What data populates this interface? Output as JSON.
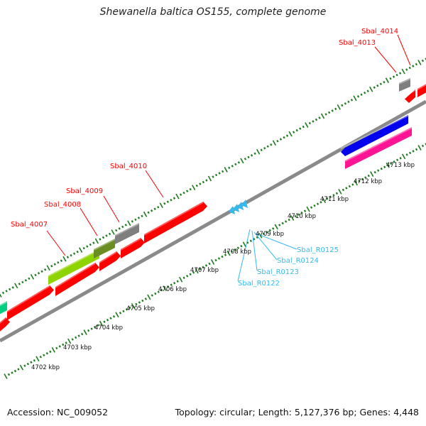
{
  "title": "Shewanella baltica OS155, complete genome",
  "footer": {
    "accession": "Accession: NC_009052",
    "summary": "Topology: circular; Length: 5,127,376 bp; Genes: 4,448"
  },
  "colors": {
    "red": "#ff0000",
    "gray": "#7f7f7f",
    "light_green": "#8fd400",
    "olive": "#6b8e23",
    "blue": "#0000ee",
    "pink": "#ff1493",
    "teal": "#00d080",
    "cyan": "#33bbee",
    "tick_green": "#1e7a1e",
    "backbone": "#999999"
  },
  "scale_labels": [
    "4702 kbp",
    "4703 kbp",
    "4704 kbp",
    "4705 kbp",
    "4706 kbp",
    "4707 kbp",
    "4708 kbp",
    "4709 kbp",
    "4710 kbp",
    "4711 kbp",
    "4712 kbp",
    "4713 kbp"
  ],
  "gene_labels": [
    "Sbal_4007",
    "Sbal_4008",
    "Sbal_4009",
    "Sbal_4010",
    "Sbal_4013",
    "Sbal_4014"
  ],
  "rna_labels": [
    "Sbal_R0122",
    "Sbal_R0123",
    "Sbal_R0124",
    "Sbal_R0125"
  ]
}
